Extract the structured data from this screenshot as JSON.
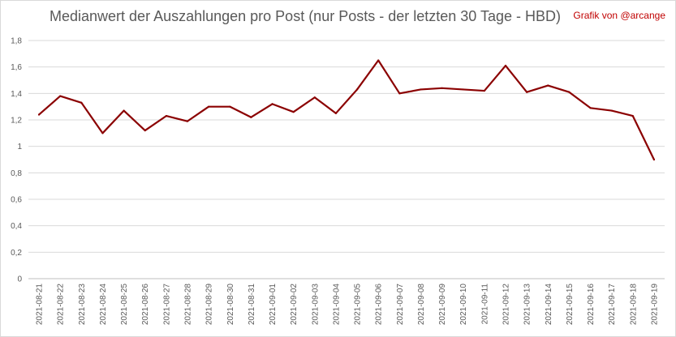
{
  "chart_data": {
    "type": "line",
    "title": "Medianwert der Auszahlungen pro Post (nur Posts - der letzten 30 Tage - HBD)",
    "credit": "Grafik von @arcange",
    "xlabel": "",
    "ylabel": "",
    "ylim": [
      0,
      1.8
    ],
    "yticks": [
      0,
      0.2,
      0.4,
      0.6,
      0.8,
      1,
      1.2,
      1.4,
      1.6,
      1.8
    ],
    "ytick_labels": [
      "0",
      "0,2",
      "0,4",
      "0,6",
      "0,8",
      "1",
      "1,2",
      "1,4",
      "1,6",
      "1,8"
    ],
    "grid": true,
    "legend": "none",
    "line_color": "#8b0000",
    "x": [
      "2021-08-21",
      "2021-08-22",
      "2021-08-23",
      "2021-08-24",
      "2021-08-25",
      "2021-08-26",
      "2021-08-27",
      "2021-08-28",
      "2021-08-29",
      "2021-08-30",
      "2021-08-31",
      "2021-09-01",
      "2021-09-02",
      "2021-09-03",
      "2021-09-04",
      "2021-09-05",
      "2021-09-06",
      "2021-09-07",
      "2021-09-08",
      "2021-09-09",
      "2021-09-10",
      "2021-09-11",
      "2021-09-12",
      "2021-09-13",
      "2021-09-14",
      "2021-09-15",
      "2021-09-16",
      "2021-09-17",
      "2021-09-18",
      "2021-09-19"
    ],
    "series": [
      {
        "name": "",
        "values": [
          1.24,
          1.38,
          1.33,
          1.1,
          1.27,
          1.12,
          1.23,
          1.19,
          1.3,
          1.3,
          1.22,
          1.32,
          1.26,
          1.37,
          1.25,
          1.43,
          1.65,
          1.4,
          1.43,
          1.44,
          1.43,
          1.42,
          1.61,
          1.41,
          1.46,
          1.41,
          1.29,
          1.27,
          1.23,
          0.9
        ]
      }
    ]
  }
}
